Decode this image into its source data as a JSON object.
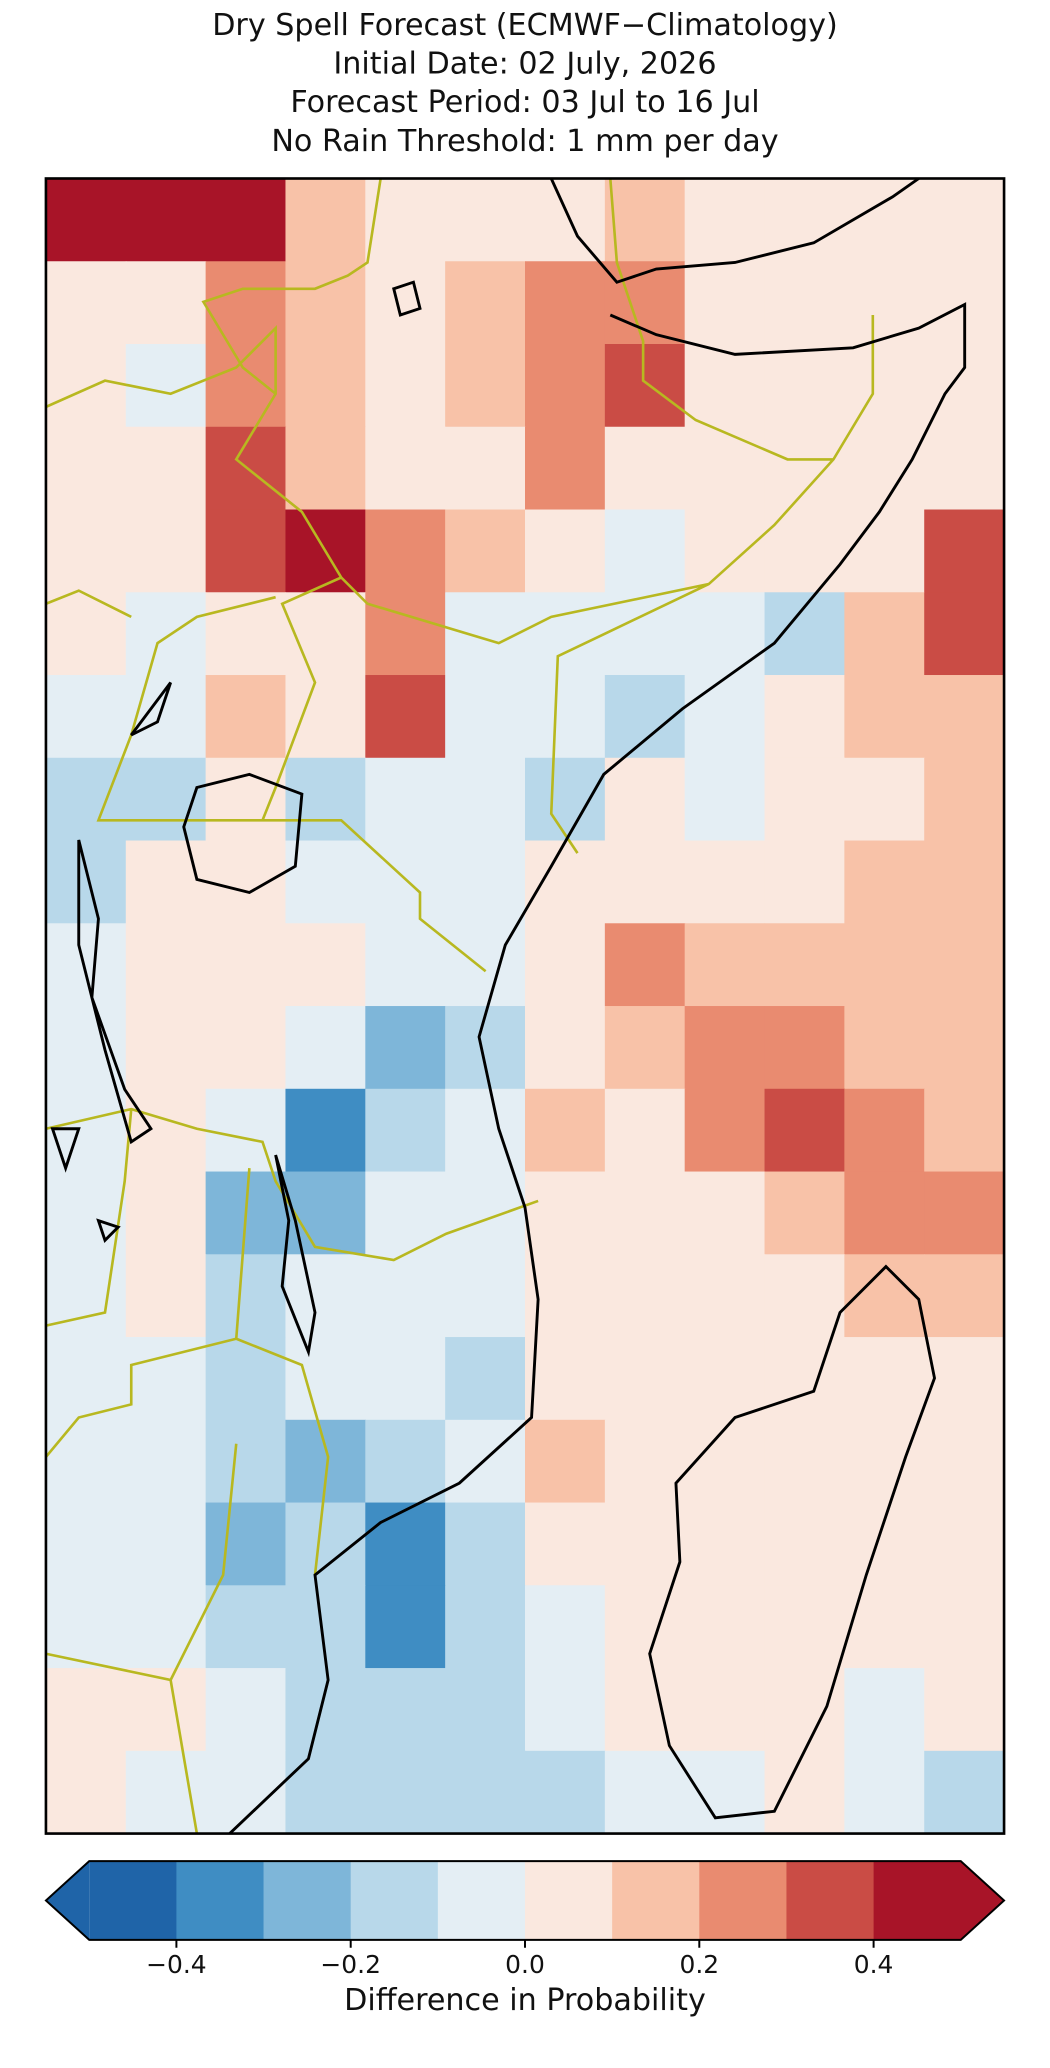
{
  "chart_data": {
    "type": "heatmap",
    "title": [
      "Dry Spell Forecast (ECMWF−Climatology)",
      "Initial Date: 02 July, 2026",
      "Forecast Period: 03 Jul to 16 Jul",
      "No Rain Threshold: 1 mm per day"
    ],
    "values": [
      [
        0.45,
        0.45,
        0.45,
        0.15,
        0.05,
        0.05,
        0.05,
        0.1,
        0.05,
        0.05,
        0.05,
        0.05
      ],
      [
        0.05,
        0.0,
        0.25,
        0.15,
        0.05,
        0.1,
        0.25,
        0.2,
        0.05,
        0.05,
        0.05,
        0.05
      ],
      [
        0.0,
        -0.05,
        0.25,
        0.1,
        0.05,
        0.1,
        0.25,
        0.3,
        0.05,
        0.05,
        0.05,
        0.05
      ],
      [
        0.05,
        0.05,
        0.3,
        0.15,
        0.05,
        0.05,
        0.25,
        0.0,
        0.05,
        0.05,
        0.05,
        0.05
      ],
      [
        0.0,
        0.05,
        0.35,
        0.4,
        0.2,
        0.1,
        0.05,
        -0.05,
        0.05,
        0.05,
        0.05,
        0.35
      ],
      [
        0.05,
        -0.05,
        0.05,
        0.05,
        0.25,
        -0.05,
        -0.05,
        -0.05,
        -0.05,
        -0.15,
        0.15,
        0.35
      ],
      [
        -0.05,
        -0.05,
        0.1,
        0.0,
        0.3,
        -0.05,
        -0.05,
        -0.15,
        -0.05,
        0.05,
        0.1,
        0.1
      ],
      [
        -0.15,
        -0.15,
        0.05,
        -0.2,
        -0.05,
        -0.05,
        -0.15,
        0.05,
        -0.05,
        0.05,
        0.05,
        0.1
      ],
      [
        -0.2,
        0.05,
        0.05,
        -0.1,
        -0.05,
        -0.05,
        0.05,
        0.05,
        0.05,
        0.05,
        0.15,
        0.1
      ],
      [
        -0.05,
        0.0,
        0.05,
        0.0,
        -0.05,
        -0.05,
        0.05,
        0.25,
        0.15,
        0.1,
        0.1,
        0.1
      ],
      [
        -0.05,
        0.0,
        0.05,
        -0.1,
        -0.25,
        -0.15,
        0.05,
        0.1,
        0.25,
        0.25,
        0.1,
        0.1
      ],
      [
        -0.1,
        0.0,
        -0.1,
        -0.35,
        -0.15,
        -0.05,
        0.1,
        0.05,
        0.2,
        0.35,
        0.25,
        0.15
      ],
      [
        -0.05,
        0.0,
        -0.25,
        -0.3,
        -0.05,
        -0.05,
        0.0,
        0.05,
        0.05,
        0.1,
        0.25,
        0.2
      ],
      [
        -0.05,
        0.0,
        -0.2,
        -0.1,
        -0.05,
        -0.05,
        0.05,
        0.05,
        0.05,
        0.05,
        0.1,
        0.15
      ],
      [
        -0.05,
        -0.05,
        -0.15,
        -0.1,
        -0.05,
        -0.15,
        0.05,
        0.0,
        0.05,
        0.05,
        0.05,
        0.05
      ],
      [
        -0.05,
        -0.05,
        -0.15,
        -0.25,
        -0.15,
        -0.05,
        0.1,
        0.0,
        0.05,
        0.05,
        0.05,
        0.0
      ],
      [
        -0.05,
        -0.05,
        -0.25,
        -0.2,
        -0.35,
        -0.15,
        0.0,
        0.05,
        0.05,
        0.05,
        0.05,
        0.05
      ],
      [
        -0.05,
        -0.1,
        -0.15,
        -0.2,
        -0.35,
        -0.15,
        -0.05,
        0.05,
        0.05,
        0.05,
        0.05,
        0.0
      ],
      [
        0.05,
        0.0,
        -0.05,
        -0.15,
        -0.15,
        -0.15,
        -0.05,
        0.0,
        0.05,
        0.05,
        -0.1,
        0.0
      ],
      [
        0.05,
        -0.05,
        -0.05,
        -0.15,
        -0.2,
        -0.2,
        -0.15,
        -0.05,
        -0.05,
        0.0,
        -0.05,
        -0.15
      ]
    ],
    "colorbar": {
      "bounds": [
        -0.5,
        -0.4,
        -0.3,
        -0.2,
        -0.1,
        0,
        0.1,
        0.2,
        0.3,
        0.4,
        0.5
      ],
      "colors": [
        "#1f64a8",
        "#3f8dc3",
        "#7eb6d9",
        "#b8d8ea",
        "#e4eef4",
        "#fae8df",
        "#f8c2a8",
        "#e98b70",
        "#ca4c45",
        "#a81428"
      ],
      "extend": "both",
      "ticks": [
        {
          "value": -0.4,
          "label": "−0.4"
        },
        {
          "value": -0.2,
          "label": "−0.2"
        },
        {
          "value": 0,
          "label": "0.0"
        },
        0.2,
        0.4
      ],
      "label": "Difference in Probability"
    }
  }
}
